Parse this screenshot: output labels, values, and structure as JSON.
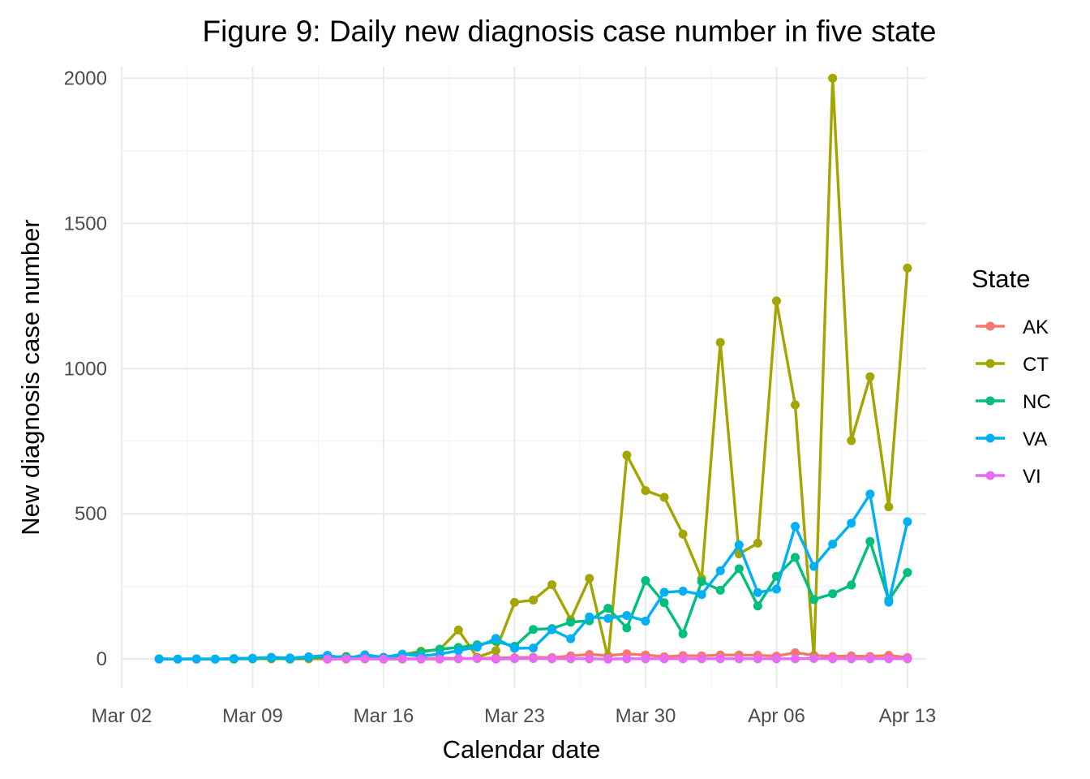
{
  "chart_data": {
    "type": "line",
    "title": "Figure 9: Daily new diagnosis case number in five state",
    "xlabel": "Calendar date",
    "ylabel": "New diagnosis case number",
    "legend_title": "State",
    "legend_position": "right",
    "grid": true,
    "x_type": "date",
    "xlim": [
      "2020-03-02",
      "2020-04-14"
    ],
    "ylim": [
      -100,
      2040
    ],
    "x_ticks": [
      {
        "date": "2020-03-02",
        "label": "Mar 02"
      },
      {
        "date": "2020-03-09",
        "label": "Mar 09"
      },
      {
        "date": "2020-03-16",
        "label": "Mar 16"
      },
      {
        "date": "2020-03-23",
        "label": "Mar 23"
      },
      {
        "date": "2020-03-30",
        "label": "Mar 30"
      },
      {
        "date": "2020-04-06",
        "label": "Apr 06"
      },
      {
        "date": "2020-04-13",
        "label": "Apr 13"
      }
    ],
    "y_ticks": [
      0,
      500,
      1000,
      1500,
      2000
    ],
    "series": [
      {
        "name": "AK",
        "color": "#F8766D",
        "x": [
          "2020-03-11",
          "2020-03-12",
          "2020-03-13",
          "2020-03-14",
          "2020-03-15",
          "2020-03-16",
          "2020-03-17",
          "2020-03-18",
          "2020-03-19",
          "2020-03-20",
          "2020-03-21",
          "2020-03-22",
          "2020-03-23",
          "2020-03-24",
          "2020-03-25",
          "2020-03-26",
          "2020-03-27",
          "2020-03-28",
          "2020-03-29",
          "2020-03-30",
          "2020-03-31",
          "2020-04-01",
          "2020-04-02",
          "2020-04-03",
          "2020-04-04",
          "2020-04-05",
          "2020-04-06",
          "2020-04-07",
          "2020-04-08",
          "2020-04-09",
          "2020-04-10",
          "2020-04-11",
          "2020-04-12",
          "2020-04-13"
        ],
        "values": [
          0,
          1,
          0,
          0,
          1,
          0,
          0,
          1,
          3,
          2,
          2,
          4,
          5,
          6,
          5,
          11,
          16,
          12,
          18,
          14,
          8,
          12,
          11,
          14,
          14,
          13,
          10,
          22,
          13,
          9,
          11,
          9,
          13,
          5
        ]
      },
      {
        "name": "CT",
        "color": "#A3A500",
        "x": [
          "2020-03-08",
          "2020-03-09",
          "2020-03-10",
          "2020-03-11",
          "2020-03-12",
          "2020-03-13",
          "2020-03-14",
          "2020-03-15",
          "2020-03-16",
          "2020-03-17",
          "2020-03-18",
          "2020-03-19",
          "2020-03-20",
          "2020-03-21",
          "2020-03-22",
          "2020-03-23",
          "2020-03-24",
          "2020-03-25",
          "2020-03-26",
          "2020-03-27",
          "2020-03-28",
          "2020-03-29",
          "2020-03-30",
          "2020-03-31",
          "2020-04-01",
          "2020-04-02",
          "2020-04-03",
          "2020-04-04",
          "2020-04-05",
          "2020-04-06",
          "2020-04-07",
          "2020-04-08",
          "2020-04-09",
          "2020-04-10",
          "2020-04-11",
          "2020-04-12",
          "2020-04-13"
        ],
        "values": [
          1,
          1,
          1,
          1,
          2,
          5,
          9,
          4,
          6,
          15,
          27,
          33,
          100,
          6,
          29,
          195,
          203,
          256,
          136,
          278,
          2,
          702,
          580,
          557,
          430,
          277,
          1090,
          362,
          399,
          1233,
          875,
          4,
          2000,
          752,
          972,
          524,
          1346
        ]
      },
      {
        "name": "NC",
        "color": "#00BF7D",
        "x": [
          "2020-03-04",
          "2020-03-05",
          "2020-03-06",
          "2020-03-07",
          "2020-03-08",
          "2020-03-09",
          "2020-03-10",
          "2020-03-11",
          "2020-03-12",
          "2020-03-13",
          "2020-03-14",
          "2020-03-15",
          "2020-03-16",
          "2020-03-17",
          "2020-03-18",
          "2020-03-19",
          "2020-03-20",
          "2020-03-21",
          "2020-03-22",
          "2020-03-23",
          "2020-03-24",
          "2020-03-25",
          "2020-03-26",
          "2020-03-27",
          "2020-03-28",
          "2020-03-29",
          "2020-03-30",
          "2020-03-31",
          "2020-04-01",
          "2020-04-02",
          "2020-04-03",
          "2020-04-04",
          "2020-04-05",
          "2020-04-06",
          "2020-04-07",
          "2020-04-08",
          "2020-04-09",
          "2020-04-10",
          "2020-04-11",
          "2020-04-12",
          "2020-04-13"
        ],
        "values": [
          1,
          0,
          1,
          0,
          0,
          1,
          3,
          0,
          5,
          7,
          8,
          6,
          5,
          13,
          24,
          34,
          40,
          49,
          61,
          44,
          102,
          105,
          127,
          132,
          175,
          107,
          270,
          194,
          87,
          267,
          237,
          311,
          183,
          285,
          350,
          205,
          225,
          255,
          405,
          203,
          298
        ]
      },
      {
        "name": "VA",
        "color": "#00B0F6",
        "x": [
          "2020-03-04",
          "2020-03-05",
          "2020-03-06",
          "2020-03-07",
          "2020-03-08",
          "2020-03-09",
          "2020-03-10",
          "2020-03-11",
          "2020-03-12",
          "2020-03-13",
          "2020-03-14",
          "2020-03-15",
          "2020-03-16",
          "2020-03-17",
          "2020-03-18",
          "2020-03-19",
          "2020-03-20",
          "2020-03-21",
          "2020-03-22",
          "2020-03-23",
          "2020-03-24",
          "2020-03-25",
          "2020-03-26",
          "2020-03-27",
          "2020-03-28",
          "2020-03-29",
          "2020-03-30",
          "2020-03-31",
          "2020-04-01",
          "2020-04-02",
          "2020-04-03",
          "2020-04-04",
          "2020-04-05",
          "2020-04-06",
          "2020-04-07",
          "2020-04-08",
          "2020-04-09",
          "2020-04-10",
          "2020-04-11",
          "2020-04-12",
          "2020-04-13"
        ],
        "values": [
          0,
          0,
          0,
          0,
          2,
          3,
          6,
          4,
          8,
          13,
          2,
          15,
          6,
          17,
          10,
          17,
          29,
          41,
          71,
          37,
          38,
          101,
          70,
          145,
          140,
          150,
          131,
          230,
          234,
          222,
          304,
          393,
          229,
          241,
          457,
          319,
          396,
          468,
          568,
          196,
          473
        ]
      },
      {
        "name": "VI",
        "color": "#E76BF3",
        "x": [
          "2020-03-13",
          "2020-03-14",
          "2020-03-15",
          "2020-03-16",
          "2020-03-17",
          "2020-03-18",
          "2020-03-19",
          "2020-03-20",
          "2020-03-21",
          "2020-03-22",
          "2020-03-23",
          "2020-03-24",
          "2020-03-25",
          "2020-03-26",
          "2020-03-27",
          "2020-03-28",
          "2020-03-29",
          "2020-03-30",
          "2020-03-31",
          "2020-04-01",
          "2020-04-02",
          "2020-04-03",
          "2020-04-04",
          "2020-04-05",
          "2020-04-06",
          "2020-04-07",
          "2020-04-08",
          "2020-04-09",
          "2020-04-10",
          "2020-04-11",
          "2020-04-12",
          "2020-04-13"
        ],
        "values": [
          0,
          1,
          1,
          0,
          1,
          0,
          0,
          1,
          2,
          0,
          1,
          2,
          1,
          1,
          1,
          0,
          1,
          1,
          1,
          1,
          1,
          1,
          1,
          1,
          1,
          1,
          2,
          1,
          1,
          1,
          1,
          1
        ]
      }
    ]
  }
}
